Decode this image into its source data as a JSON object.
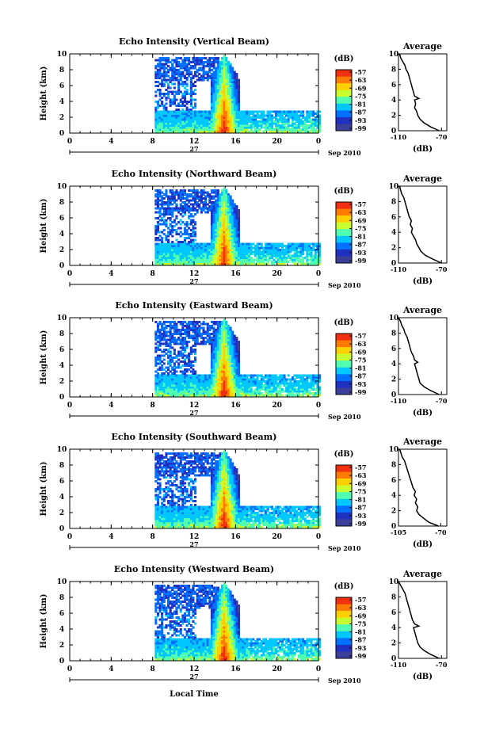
{
  "figure": {
    "xlabel": "Local Time",
    "date_day": "27",
    "date_suffix": "Sep 2010",
    "colorbar_unit": "(dB)",
    "colorbar_ticks": [
      "-57",
      "-63",
      "-69",
      "-75",
      "-81",
      "-87",
      "-93",
      "-99"
    ],
    "colorbar_colors": [
      "#f03010",
      "#ff7a00",
      "#ffd000",
      "#c8ff30",
      "#50ffb0",
      "#00c8ff",
      "#0070ff",
      "#2030c0",
      "#3b3f9a"
    ],
    "profile_title": "Average",
    "profile_xlabel": "(dB)"
  },
  "chart_data": [
    {
      "type": "heatmap",
      "title": "Echo Intensity (Vertical Beam)",
      "xlabel": "Local Time",
      "ylabel": "Height (km)",
      "x_ticks": [
        "0",
        "4",
        "8",
        "12",
        "16",
        "20",
        "0"
      ],
      "y_ticks": [
        "0",
        "2",
        "4",
        "6",
        "8",
        "10"
      ],
      "xlim": [
        0,
        24
      ],
      "ylim": [
        0,
        10
      ],
      "z_range_db": [
        -99,
        -57
      ],
      "profile": {
        "title": "Average",
        "xlabel": "(dB)",
        "x_ticks": [
          "-110",
          "-70"
        ],
        "xlim": [
          -110,
          -65
        ],
        "y_ticks": [
          "0",
          "2",
          "4",
          "6",
          "8",
          "10"
        ],
        "height_km": [
          0,
          0.5,
          1,
          1.5,
          2,
          2.5,
          3,
          3.5,
          4,
          4.2,
          4.5,
          5,
          5.5,
          6,
          6.5,
          7,
          7.5,
          8,
          8.5,
          9,
          9.5,
          10
        ],
        "avg_db": [
          -72,
          -80,
          -86,
          -90,
          -92,
          -93,
          -95,
          -94,
          -95,
          -91,
          -95,
          -96,
          -97,
          -98,
          -99,
          -100,
          -101,
          -103,
          -104,
          -106,
          -108,
          -109
        ]
      }
    },
    {
      "type": "heatmap",
      "title": "Echo Intensity (Northward Beam)",
      "xlabel": "Local Time",
      "ylabel": "Height (km)",
      "x_ticks": [
        "0",
        "4",
        "8",
        "12",
        "16",
        "20",
        "0"
      ],
      "y_ticks": [
        "0",
        "2",
        "4",
        "6",
        "8",
        "10"
      ],
      "xlim": [
        0,
        24
      ],
      "ylim": [
        0,
        10
      ],
      "z_range_db": [
        -99,
        -57
      ],
      "profile": {
        "title": "Average",
        "xlabel": "(dB)",
        "x_ticks": [
          "-110",
          "-70"
        ],
        "xlim": [
          -110,
          -65
        ],
        "y_ticks": [
          "0",
          "2",
          "4",
          "6",
          "8",
          "10"
        ],
        "height_km": [
          0,
          0.5,
          1,
          1.5,
          2,
          2.5,
          3,
          3.5,
          4,
          4.5,
          5,
          5.5,
          6,
          6.5,
          7,
          7.5,
          8,
          8.5,
          9,
          9.5,
          10
        ],
        "avg_db": [
          -70,
          -78,
          -85,
          -89,
          -91,
          -93,
          -94,
          -96,
          -98,
          -97,
          -99,
          -98,
          -100,
          -101,
          -102,
          -103,
          -104,
          -105,
          -107,
          -108,
          -109
        ]
      }
    },
    {
      "type": "heatmap",
      "title": "Echo Intensity (Eastward Beam)",
      "xlabel": "Local Time",
      "ylabel": "Height (km)",
      "x_ticks": [
        "0",
        "4",
        "8",
        "12",
        "16",
        "20",
        "0"
      ],
      "y_ticks": [
        "0",
        "2",
        "4",
        "6",
        "8",
        "10"
      ],
      "xlim": [
        0,
        24
      ],
      "ylim": [
        0,
        10
      ],
      "z_range_db": [
        -99,
        -57
      ],
      "profile": {
        "title": "Average",
        "xlabel": "(dB)",
        "x_ticks": [
          "-110",
          "-70"
        ],
        "xlim": [
          -110,
          -65
        ],
        "y_ticks": [
          "0",
          "2",
          "4",
          "6",
          "8",
          "10"
        ],
        "height_km": [
          0,
          0.5,
          1,
          1.5,
          2,
          2.5,
          3,
          3.5,
          4,
          4.2,
          4.5,
          5,
          5.5,
          6,
          6.5,
          7,
          7.5,
          8,
          8.5,
          9,
          9.5,
          10
        ],
        "avg_db": [
          -72,
          -80,
          -86,
          -90,
          -91,
          -92,
          -93,
          -94,
          -95,
          -92,
          -95,
          -96,
          -98,
          -99,
          -100,
          -101,
          -102,
          -104,
          -105,
          -107,
          -108,
          -110
        ]
      }
    },
    {
      "type": "heatmap",
      "title": "Echo Intensity (Southward Beam)",
      "xlabel": "Local Time",
      "ylabel": "Height (km)",
      "x_ticks": [
        "0",
        "4",
        "8",
        "12",
        "16",
        "20",
        "0"
      ],
      "y_ticks": [
        "0",
        "2",
        "4",
        "6",
        "8",
        "10"
      ],
      "xlim": [
        0,
        24
      ],
      "ylim": [
        0,
        10
      ],
      "z_range_db": [
        -99,
        -57
      ],
      "profile": {
        "title": "Average",
        "xlabel": "(dB)",
        "x_ticks": [
          "-105",
          "-70"
        ],
        "xlim": [
          -105,
          -65
        ],
        "y_ticks": [
          "0",
          "2",
          "4",
          "6",
          "8",
          "10"
        ],
        "height_km": [
          0,
          0.5,
          1,
          1.5,
          2,
          2.5,
          3,
          3.5,
          4,
          4.5,
          5,
          5.5,
          6,
          6.5,
          7,
          7.5,
          8,
          8.5,
          9,
          9.5,
          10
        ],
        "avg_db": [
          -72,
          -80,
          -84,
          -88,
          -90,
          -89,
          -91,
          -90,
          -92,
          -91,
          -93,
          -94,
          -95,
          -96,
          -97,
          -98,
          -99,
          -100,
          -102,
          -103,
          -104
        ]
      }
    },
    {
      "type": "heatmap",
      "title": "Echo Intensity (Westward Beam)",
      "xlabel": "Local Time",
      "ylabel": "Height (km)",
      "x_ticks": [
        "0",
        "4",
        "8",
        "12",
        "16",
        "20",
        "0"
      ],
      "y_ticks": [
        "0",
        "2",
        "4",
        "6",
        "8",
        "10"
      ],
      "xlim": [
        0,
        24
      ],
      "ylim": [
        0,
        10
      ],
      "z_range_db": [
        -99,
        -57
      ],
      "profile": {
        "title": "Average",
        "xlabel": "(dB)",
        "x_ticks": [
          "-110",
          "-70"
        ],
        "xlim": [
          -110,
          -65
        ],
        "y_ticks": [
          "0",
          "2",
          "4",
          "6",
          "8",
          "10"
        ],
        "height_km": [
          0,
          0.5,
          1,
          1.5,
          2,
          2.5,
          3,
          3.5,
          4,
          4.2,
          4.5,
          5,
          5.5,
          6,
          6.5,
          7,
          7.5,
          8,
          8.5,
          9,
          9.5,
          10
        ],
        "avg_db": [
          -72,
          -80,
          -86,
          -90,
          -92,
          -93,
          -94,
          -95,
          -96,
          -91,
          -95,
          -97,
          -98,
          -99,
          -100,
          -101,
          -102,
          -103,
          -104,
          -106,
          -108,
          -110
        ]
      }
    }
  ]
}
